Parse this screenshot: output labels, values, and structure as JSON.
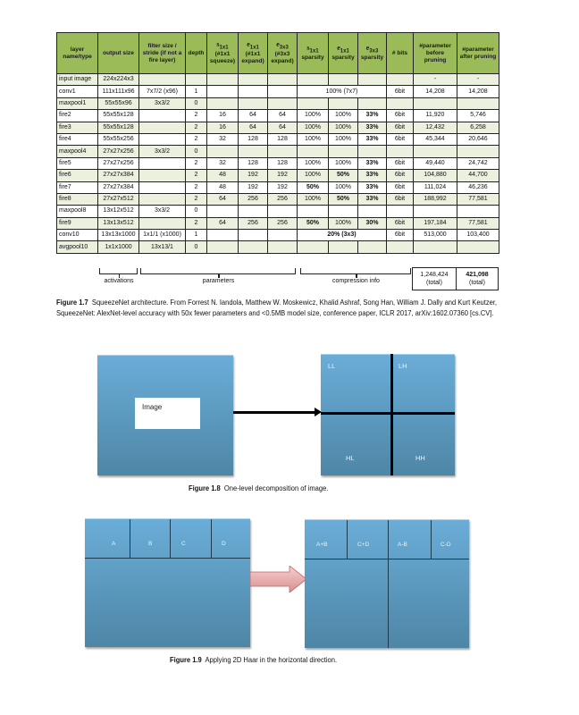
{
  "table": {
    "headers": [
      {
        "text": "layer name/type"
      },
      {
        "text": "output size"
      },
      {
        "text": "filter size / stride (if not a fire layer)"
      },
      {
        "text": "depth"
      },
      {
        "main": "s",
        "sub": "1x1",
        "rest": "(#1x1 squeeze)"
      },
      {
        "main": "e",
        "sub": "1x1",
        "rest": "(#1x1 expand)"
      },
      {
        "main": "e",
        "sub": "3x3",
        "rest": "(#3x3 expand)"
      },
      {
        "main": "s",
        "sub": "1x1",
        "rest": "sparsity"
      },
      {
        "main": "e",
        "sub": "1x1",
        "rest": "sparsity"
      },
      {
        "main": "e",
        "sub": "3x3",
        "rest": "sparsity"
      },
      {
        "text": "# bits"
      },
      {
        "text": "#parameter before pruning"
      },
      {
        "text": "#parameter after pruning"
      }
    ],
    "rows": [
      {
        "cells": [
          "input image",
          "224x224x3",
          "",
          "",
          "",
          "",
          "",
          "",
          "",
          "",
          "",
          "-",
          "-"
        ]
      },
      {
        "cells": [
          "conv1",
          "111x111x96",
          "7x7/2 (x96)",
          "1",
          "",
          "",
          "",
          "100% (7x7)",
          "6bit",
          "14,208",
          "14,208"
        ],
        "merged": true
      },
      {
        "cells": [
          "maxpool1",
          "55x55x96",
          "3x3/2",
          "0",
          "",
          "",
          "",
          "",
          "",
          "",
          "",
          "",
          ""
        ]
      },
      {
        "cells": [
          "fire2",
          "55x55x128",
          "",
          "2",
          "16",
          "64",
          "64",
          "100%",
          "100%",
          "33%",
          "6bit",
          "11,920",
          "5,746"
        ]
      },
      {
        "cells": [
          "fire3",
          "55x55x128",
          "",
          "2",
          "16",
          "64",
          "64",
          "100%",
          "100%",
          "33%",
          "6bit",
          "12,432",
          "6,258"
        ]
      },
      {
        "cells": [
          "fire4",
          "55x55x256",
          "",
          "2",
          "32",
          "128",
          "128",
          "100%",
          "100%",
          "33%",
          "6bit",
          "45,344",
          "20,646"
        ]
      },
      {
        "cells": [
          "maxpool4",
          "27x27x256",
          "3x3/2",
          "0",
          "",
          "",
          "",
          "",
          "",
          "",
          "",
          "",
          ""
        ]
      },
      {
        "cells": [
          "fire5",
          "27x27x256",
          "",
          "2",
          "32",
          "128",
          "128",
          "100%",
          "100%",
          "33%",
          "6bit",
          "49,440",
          "24,742"
        ]
      },
      {
        "cells": [
          "fire6",
          "27x27x384",
          "",
          "2",
          "48",
          "192",
          "192",
          "100%",
          "50%",
          "33%",
          "6bit",
          "104,880",
          "44,700"
        ]
      },
      {
        "cells": [
          "fire7",
          "27x27x384",
          "",
          "2",
          "48",
          "192",
          "192",
          "50%",
          "100%",
          "33%",
          "6bit",
          "111,024",
          "46,236"
        ]
      },
      {
        "cells": [
          "fire8",
          "27x27x512",
          "",
          "2",
          "64",
          "256",
          "256",
          "100%",
          "50%",
          "33%",
          "6bit",
          "188,992",
          "77,581"
        ]
      },
      {
        "cells": [
          "maxpool8",
          "13x12x512",
          "3x3/2",
          "0",
          "",
          "",
          "",
          "",
          "",
          "",
          "",
          "",
          ""
        ]
      },
      {
        "cells": [
          "fire9",
          "13x13x512",
          "",
          "2",
          "64",
          "256",
          "256",
          "50%",
          "100%",
          "30%",
          "6bit",
          "197,184",
          "77,581"
        ]
      },
      {
        "cells": [
          "conv10",
          "13x13x1000",
          "1x1/1 (x1000)",
          "1",
          "",
          "",
          "",
          "20% (3x3)",
          "6bit",
          "513,000",
          "103,400"
        ],
        "merged": true
      },
      {
        "cells": [
          "avgpool10",
          "1x1x1000",
          "13x13/1",
          "0",
          "",
          "",
          "",
          "",
          "",
          "",
          "",
          "",
          ""
        ]
      }
    ],
    "groups": {
      "activations": "activations",
      "parameters": "parameters",
      "compression": "compression info"
    },
    "totals": {
      "before": "1,248,424",
      "before_label": "(total)",
      "after": "421,098",
      "after_label": "(total)"
    },
    "colors": {
      "header": "#9bbb59",
      "stripe": "#ebf1de"
    }
  },
  "fig17": {
    "label": "Figure 1.7",
    "text": "SqueezeNet architecture. From Forrest N. Iandola, Matthew W. Moskewicz, Khalid Ashraf, Song Han, William J. Dally and Kurt Keutzer, SqueezeNet: AlexNet-level accuracy with 50x fewer parameters and <0.5MB model size, conference paper, ICLR 2017, arXiv:1602.07360 [cs.CV]."
  },
  "fig18": {
    "image_label": "Image",
    "ll": "LL",
    "lh": "LH",
    "hl": "HL",
    "hh": "HH",
    "label": "Figure 1.8",
    "text": "One-level decomposition of image."
  },
  "fig19": {
    "left": [
      "A",
      "B",
      "C",
      "D"
    ],
    "right": [
      "A+B",
      "C+D",
      "A-B",
      "C-D"
    ],
    "label": "Figure 1.9",
    "text": "Applying 2D Haar in the horizontal direction.",
    "arrow_color": "#e8a0a0"
  },
  "colors": {
    "box_top": "#6aadd8",
    "box_bottom": "#4e86a6"
  }
}
